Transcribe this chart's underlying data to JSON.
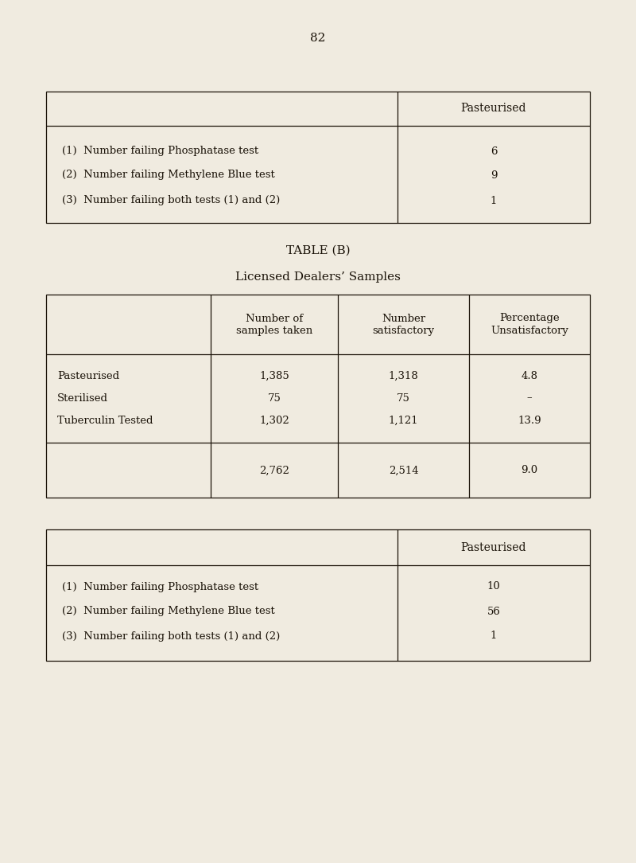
{
  "page_number": "82",
  "bg_color": "#f0ebe0",
  "text_color": "#1a1208",
  "table1": {
    "header": [
      "",
      "Pasteurised"
    ],
    "rows": [
      [
        "(1)  Number failing Phosphatase test",
        "6"
      ],
      [
        "(2)  Number failing Methylene Blue test",
        "9"
      ],
      [
        "(3)  Number failing both tests (1) and (2)",
        "1"
      ]
    ]
  },
  "table_b_title": "TABLE (B)",
  "table_b_subtitle": "Licensed Dealers’ Samples",
  "table2": {
    "headers": [
      "",
      "Number of\nsamples taken",
      "Number\nsatisfactory",
      "Percentage\nUnsatisfactory"
    ],
    "rows": [
      [
        "Pasteurised",
        "1,385",
        "1,318",
        "4.8"
      ],
      [
        "Sterilised",
        "75",
        "75",
        "–"
      ],
      [
        "Tuberculin Tested",
        "1,302",
        "1,121",
        "13.9"
      ]
    ],
    "total_row": [
      "",
      "2,762",
      "2,514",
      "9.0"
    ]
  },
  "table3": {
    "header": [
      "",
      "Pasteurised"
    ],
    "rows": [
      [
        "(1)  Number failing Phosphatase test",
        "10"
      ],
      [
        "(2)  Number failing Methylene Blue test",
        "56"
      ],
      [
        "(3)  Number failing both tests (1) and (2)",
        "1"
      ]
    ]
  }
}
